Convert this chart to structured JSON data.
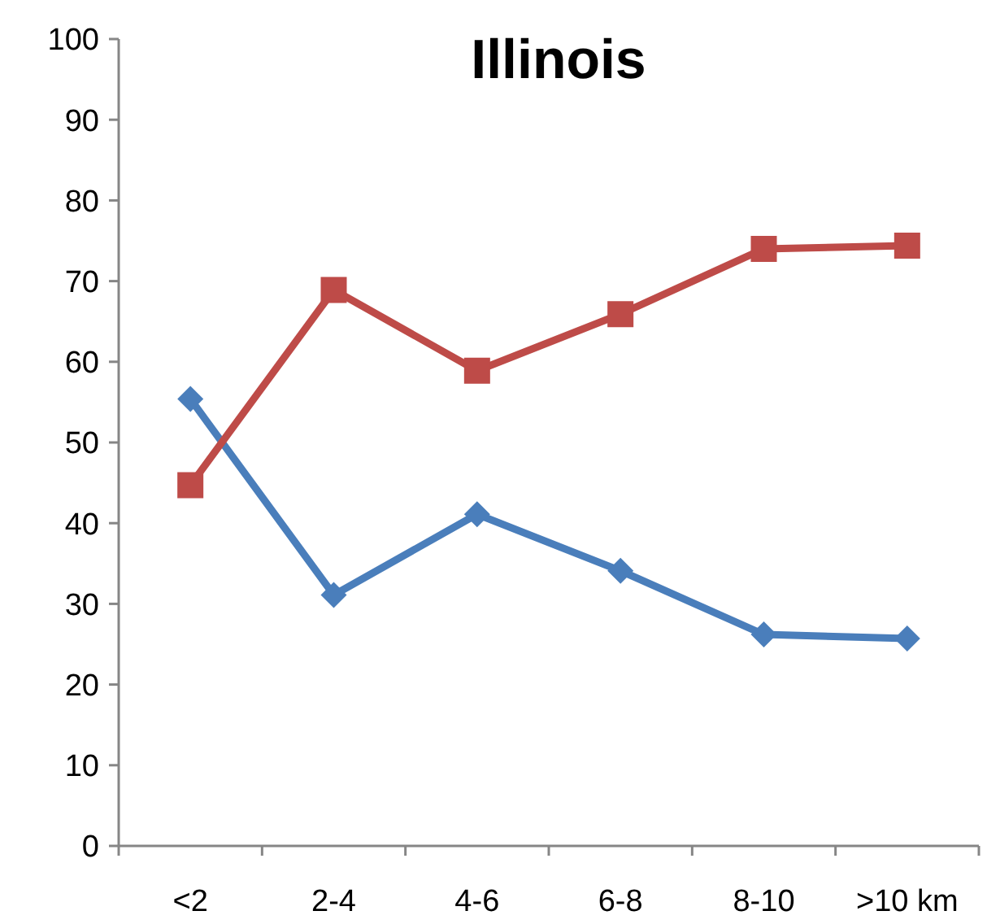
{
  "chart_data": {
    "type": "line",
    "title": "Illinois",
    "categories": [
      "<2",
      "2-4",
      "4-6",
      "6-8",
      "8-10",
      ">10 km"
    ],
    "series": [
      {
        "color": "#4a7ebb",
        "marker": "diamond",
        "values": [
          55.4,
          31.1,
          41.1,
          34.1,
          26.2,
          25.7
        ]
      },
      {
        "color": "#be4b48",
        "marker": "square",
        "values": [
          44.7,
          68.9,
          58.9,
          65.9,
          74.0,
          74.4
        ]
      }
    ],
    "ylim": [
      0,
      100
    ],
    "yticks": [
      0,
      10,
      20,
      30,
      40,
      50,
      60,
      70,
      80,
      90,
      100
    ]
  }
}
